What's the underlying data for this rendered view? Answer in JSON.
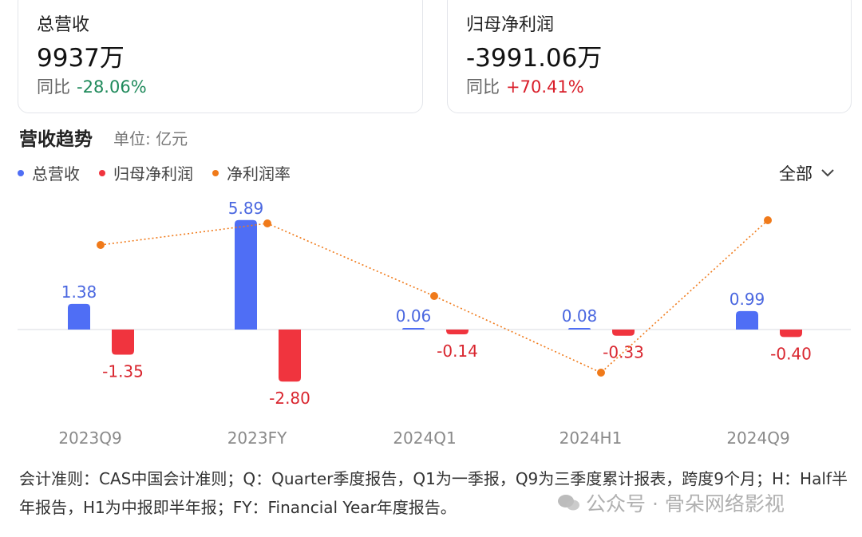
{
  "cards": [
    {
      "title": "总营收",
      "value": "9937万",
      "yoy_label": "同比",
      "yoy_value": "-28.06%",
      "direction": "down"
    },
    {
      "title": "归母净利润",
      "value": "-3991.06万",
      "yoy_label": "同比",
      "yoy_value": "+70.41%",
      "direction": "up"
    }
  ],
  "section": {
    "title": "营收趋势",
    "unit": "单位: 亿元"
  },
  "legend": [
    {
      "label": "总营收",
      "color": "#4f6ef5"
    },
    {
      "label": "归母净利润",
      "color": "#f0343e"
    },
    {
      "label": "净利润率",
      "color": "#f07a1a"
    }
  ],
  "range_select": {
    "value": "全部"
  },
  "chart_data": {
    "type": "bar",
    "categories": [
      "2023Q9",
      "2023FY",
      "2024Q1",
      "2024H1",
      "2024Q9"
    ],
    "series": [
      {
        "name": "总营收",
        "values": [
          1.38,
          5.89,
          0.06,
          0.08,
          0.99
        ],
        "labels": [
          "1.38",
          "5.89",
          "0.06",
          "0.08",
          "0.99"
        ],
        "color": "#4f6ef5"
      },
      {
        "name": "归母净利润",
        "values": [
          -1.35,
          -2.8,
          -0.14,
          -0.33,
          -0.4
        ],
        "labels": [
          "-1.35",
          "-2.80",
          "-0.14",
          "-0.33",
          "-0.40"
        ],
        "color": "#f0343e"
      },
      {
        "name": "净利润率",
        "type": "line",
        "values": [
          -97.8,
          -47.5,
          -233.3,
          -412.5,
          -40.4
        ],
        "unit": "%",
        "color": "#f07a1a"
      }
    ]
  },
  "footnote": "会计准则：CAS中国会计准则；Q：Quarter季度报告，Q1为一季报，Q9为三季度累计报表，跨度9个月；H：Half半年报告，H1为中报即半年报；FY：Financial Year年度报告。",
  "watermark": {
    "text": "公众号 · 骨朵网络影视",
    "icon": "wechat-icon"
  }
}
